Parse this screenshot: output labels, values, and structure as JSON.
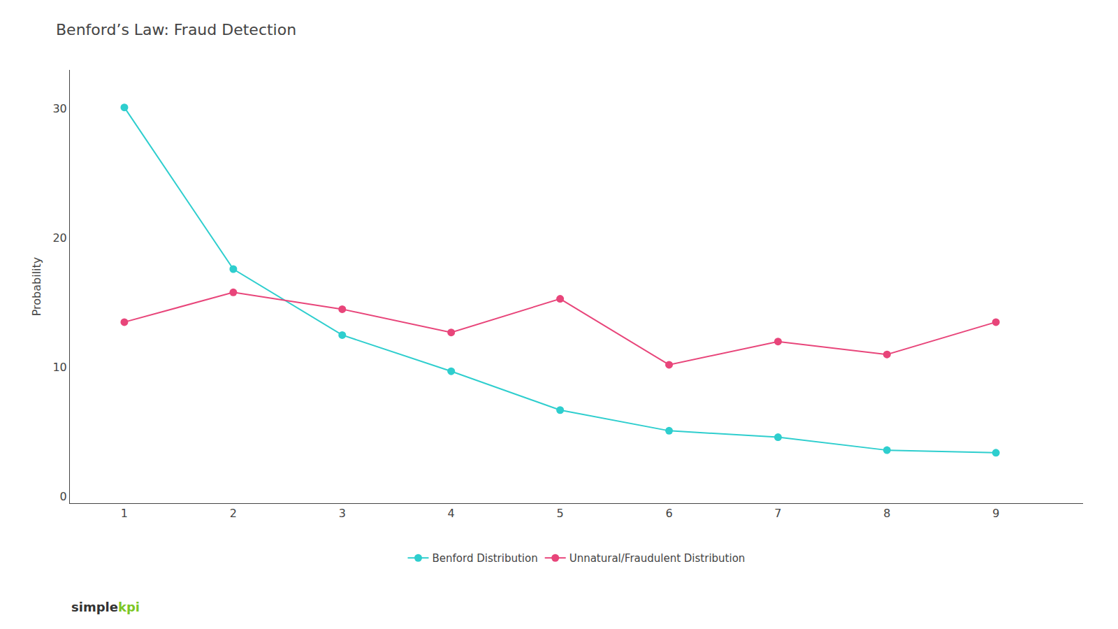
{
  "chart_data": {
    "type": "line",
    "title": "Benford’s Law: Fraud Detection",
    "x": [
      1,
      2,
      3,
      4,
      5,
      6,
      7,
      8,
      9
    ],
    "series": [
      {
        "name": "Benford Distribution",
        "color": "#2ECECE",
        "marker": "circle",
        "values": [
          30.1,
          17.6,
          12.5,
          9.7,
          6.7,
          5.1,
          4.6,
          3.6,
          3.4
        ]
      },
      {
        "name": "Unnatural/Fraudulent Distribution",
        "color": "#E8457A",
        "marker": "circle",
        "values": [
          13.5,
          15.8,
          14.5,
          12.7,
          15.3,
          10.2,
          12.0,
          11.0,
          13.5
        ]
      }
    ],
    "ylabel": "Probability",
    "xlim": [
      0.5,
      9.8
    ],
    "ylim": [
      -0.5,
      33
    ],
    "xticks": [
      1,
      2,
      3,
      4,
      5,
      6,
      7,
      8,
      9
    ],
    "yticks": [
      0,
      10,
      20,
      30
    ],
    "grid": false,
    "legend": "bottom",
    "annotations": [
      {
        "text": "simple",
        "color": "#333333"
      },
      {
        "text": "kpi",
        "color": "#7DC726"
      }
    ]
  }
}
